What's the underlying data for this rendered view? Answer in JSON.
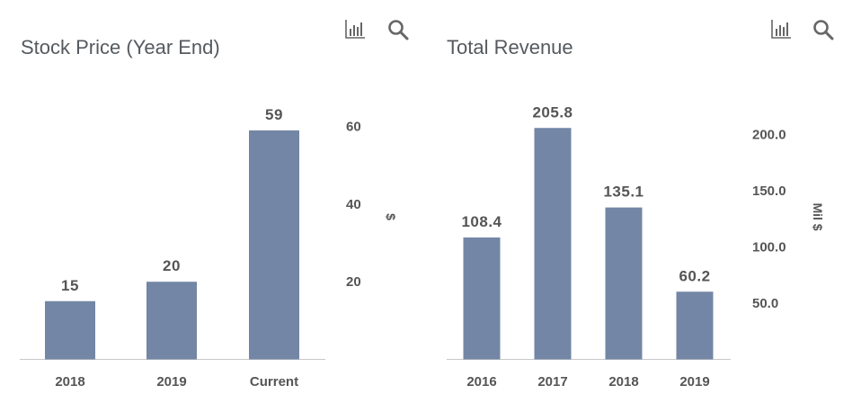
{
  "colors": {
    "bar": "#7386a5",
    "text": "#555555",
    "title": "#555a5f"
  },
  "chart_data": [
    {
      "type": "bar",
      "title": "Stock Price (Year End)",
      "categories": [
        "2018",
        "2019",
        "Current"
      ],
      "values": [
        15,
        20,
        59
      ],
      "data_labels": [
        "15",
        "20",
        "59"
      ],
      "ylabel": "$",
      "y_ticks": [
        20,
        40,
        60
      ],
      "y_tick_labels": [
        "20",
        "40",
        "60"
      ],
      "ylim": [
        0,
        62
      ],
      "y_axis_side": "right",
      "grid": false,
      "icons": [
        "bar-chart-icon",
        "search-icon"
      ]
    },
    {
      "type": "bar",
      "title": "Total Revenue",
      "categories": [
        "2016",
        "2017",
        "2018",
        "2019"
      ],
      "values": [
        108.4,
        205.8,
        135.1,
        60.2
      ],
      "data_labels": [
        "108.4",
        "205.8",
        "135.1",
        "60.2"
      ],
      "ylabel": "Mil $",
      "y_ticks": [
        50,
        100,
        150,
        200
      ],
      "y_tick_labels": [
        "50.0",
        "100.0",
        "150.0",
        "200.0"
      ],
      "ylim": [
        0,
        206
      ],
      "y_axis_side": "right",
      "grid": false,
      "icons": [
        "bar-chart-icon",
        "search-icon"
      ]
    }
  ]
}
